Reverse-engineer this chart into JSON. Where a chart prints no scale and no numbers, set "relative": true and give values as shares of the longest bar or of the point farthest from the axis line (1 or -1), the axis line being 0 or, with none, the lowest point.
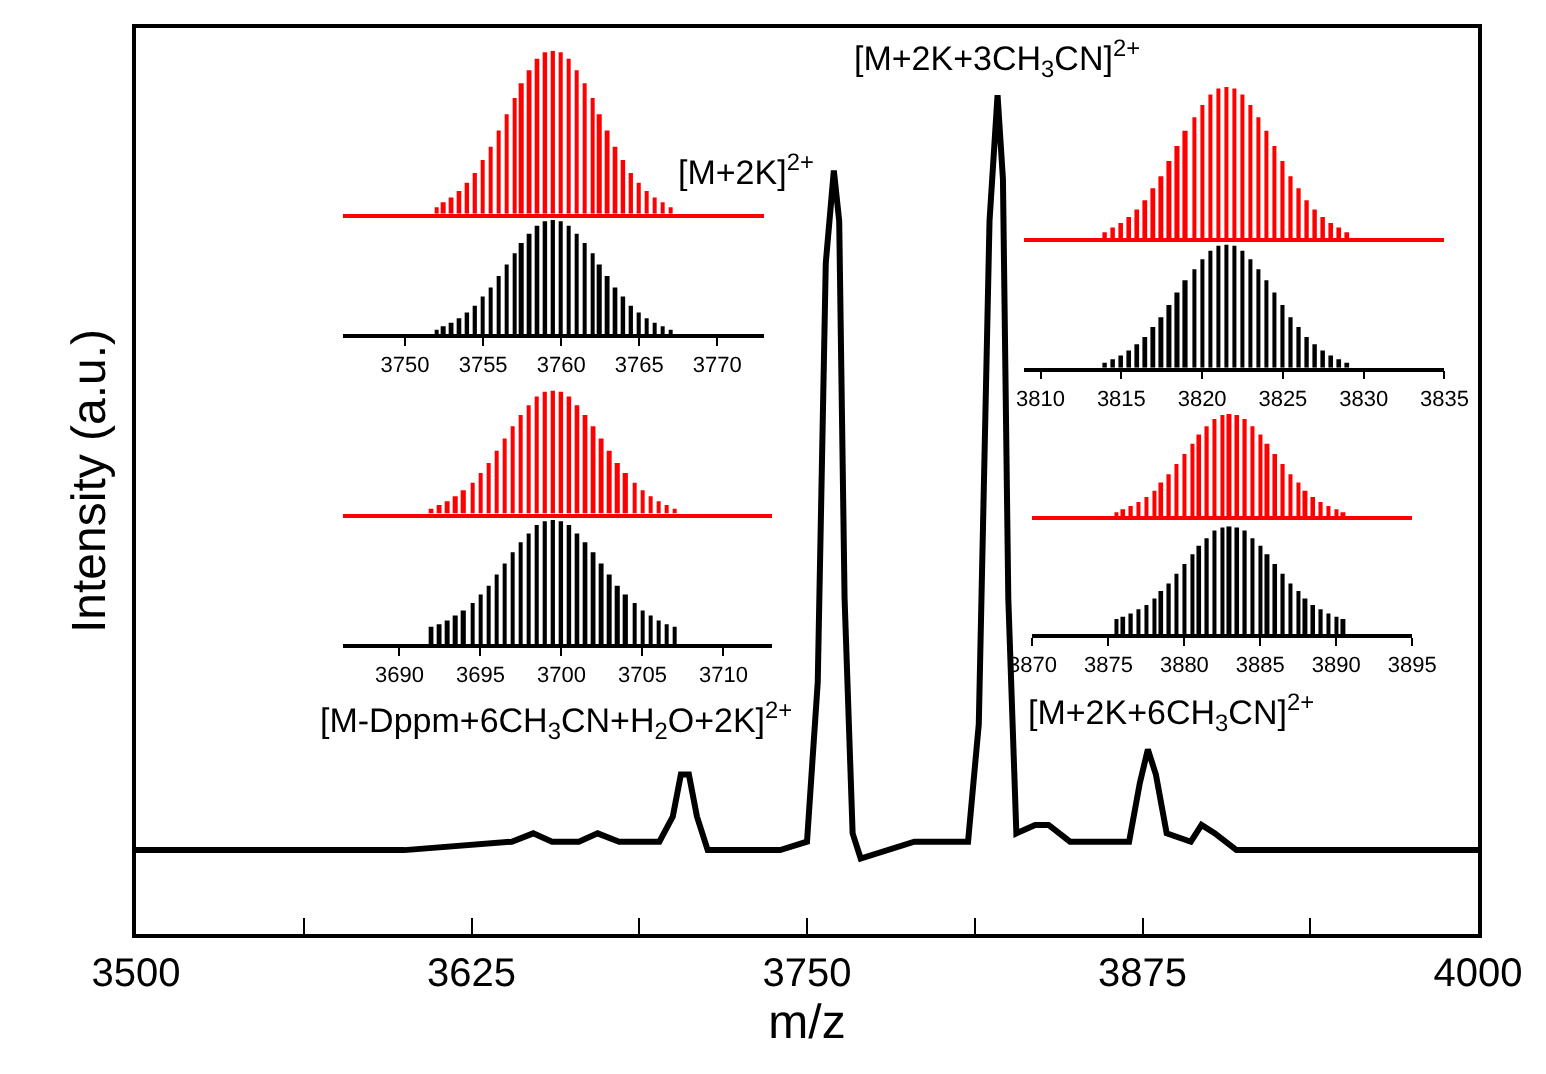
{
  "chart_data": [
    {
      "type": "line",
      "relative": true,
      "xlabel": "m/z",
      "ylabel": "Intensity (a.u.)",
      "xlim": [
        3500,
        4000
      ],
      "xticks": [
        3500,
        {
          "value": 3562.5,
          "label": null
        },
        3625,
        {
          "value": 3687.5,
          "label": null
        },
        3750,
        {
          "value": 3812.5,
          "label": null
        },
        3875,
        {
          "value": 3937.5,
          "label": null
        },
        4000
      ],
      "marker": "none",
      "line_style": "solid",
      "series": [
        {
          "color": "#000000",
          "x": [
            3500,
            3600,
            3640,
            3648,
            3655,
            3665,
            3672,
            3680,
            3695,
            3700,
            3703,
            3706,
            3709,
            3713,
            3740,
            3750,
            3754,
            3757,
            3760,
            3762,
            3764,
            3767,
            3770,
            3790,
            3810,
            3814,
            3818,
            3821,
            3823,
            3825,
            3828,
            3835,
            3840,
            3848,
            3870,
            3874,
            3877,
            3880,
            3884,
            3893,
            3897,
            3902,
            3910,
            4000
          ],
          "values": [
            0.1,
            0.1,
            0.11,
            0.12,
            0.11,
            0.11,
            0.12,
            0.11,
            0.11,
            0.14,
            0.19,
            0.19,
            0.14,
            0.1,
            0.1,
            0.11,
            0.3,
            0.8,
            0.91,
            0.85,
            0.4,
            0.12,
            0.09,
            0.11,
            0.11,
            0.25,
            0.85,
            1.0,
            0.9,
            0.4,
            0.12,
            0.13,
            0.13,
            0.11,
            0.11,
            0.18,
            0.22,
            0.19,
            0.12,
            0.11,
            0.13,
            0.12,
            0.1,
            0.1
          ]
        }
      ],
      "annotations": [
        {
          "text": "[M+2K]$^{2+}$",
          "x": 3760,
          "y": 0.91
        },
        {
          "text": "[M+2K+3CH$_{3}$CN]$^{2+}$",
          "x": 3821,
          "y": 1.0
        },
        {
          "text": "[M-Dppm+6CH$_{3}$CN+H$_{2}$O+2K]$^{2+}$",
          "x": 3705,
          "y": 0.19
        },
        {
          "text": "[M+2K+6CH$_{3}$CN]$^{2+}$",
          "x": 3877,
          "y": 0.22
        }
      ]
    },
    {
      "type": "bar",
      "relative": true,
      "xlim": [
        3746,
        3773
      ],
      "x": [
        3752.0,
        3752.5,
        3753.0,
        3753.5,
        3754.0,
        3754.5,
        3755.0,
        3755.5,
        3756.0,
        3756.5,
        3757.0,
        3757.5,
        3758.0,
        3758.5,
        3759.0,
        3759.5,
        3760.0,
        3760.5,
        3761.0,
        3761.5,
        3762.0,
        3762.5,
        3763.0,
        3763.5,
        3764.0,
        3764.5,
        3765.0,
        3765.5,
        3766.0,
        3766.5,
        3767.0
      ],
      "series": [
        {
          "color": "#ff0000",
          "values": [
            0.04,
            0.07,
            0.1,
            0.14,
            0.19,
            0.25,
            0.33,
            0.41,
            0.51,
            0.61,
            0.71,
            0.8,
            0.88,
            0.95,
            0.99,
            1.0,
            0.99,
            0.95,
            0.88,
            0.8,
            0.71,
            0.61,
            0.51,
            0.41,
            0.33,
            0.25,
            0.19,
            0.14,
            0.1,
            0.07,
            0.04
          ]
        }
      ]
    },
    {
      "type": "bar",
      "relative": true,
      "xlim": [
        3746,
        3773
      ],
      "xticks": [
        3750,
        3755,
        3760,
        3765,
        3770
      ],
      "x": [
        3752.0,
        3752.5,
        3753.0,
        3753.5,
        3754.0,
        3754.5,
        3755.0,
        3755.5,
        3756.0,
        3756.5,
        3757.0,
        3757.5,
        3758.0,
        3758.5,
        3759.0,
        3759.5,
        3760.0,
        3760.5,
        3761.0,
        3761.5,
        3762.0,
        3762.5,
        3763.0,
        3763.5,
        3764.0,
        3764.5,
        3765.0,
        3765.5,
        3766.0,
        3766.5,
        3767.0
      ],
      "series": [
        {
          "color": "#000000",
          "values": [
            0.04,
            0.07,
            0.1,
            0.14,
            0.19,
            0.25,
            0.33,
            0.41,
            0.51,
            0.61,
            0.71,
            0.8,
            0.88,
            0.95,
            0.99,
            1.0,
            0.99,
            0.95,
            0.88,
            0.8,
            0.71,
            0.61,
            0.51,
            0.41,
            0.33,
            0.25,
            0.19,
            0.14,
            0.1,
            0.07,
            0.04
          ]
        }
      ]
    },
    {
      "type": "bar",
      "relative": true,
      "xlim": [
        3686.5,
        3713
      ],
      "x": [
        3692.0,
        3692.5,
        3693.0,
        3693.5,
        3694.0,
        3694.5,
        3695.0,
        3695.5,
        3696.0,
        3696.5,
        3697.0,
        3697.5,
        3698.0,
        3698.5,
        3699.0,
        3699.5,
        3700.0,
        3700.5,
        3701.0,
        3701.5,
        3702.0,
        3702.5,
        3703.0,
        3703.5,
        3704.0,
        3704.5,
        3705.0,
        3705.5,
        3706.0,
        3706.5,
        3707.0
      ],
      "series": [
        {
          "color": "#ff0000",
          "values": [
            0.04,
            0.07,
            0.1,
            0.14,
            0.19,
            0.25,
            0.33,
            0.41,
            0.51,
            0.61,
            0.71,
            0.8,
            0.88,
            0.95,
            0.99,
            1.0,
            0.99,
            0.95,
            0.88,
            0.8,
            0.71,
            0.61,
            0.51,
            0.41,
            0.33,
            0.25,
            0.19,
            0.14,
            0.1,
            0.07,
            0.04
          ]
        }
      ]
    },
    {
      "type": "bar",
      "relative": true,
      "xlim": [
        3686.5,
        3713
      ],
      "xticks": [
        3690,
        3695,
        3700,
        3705,
        3710
      ],
      "x": [
        3692.0,
        3692.5,
        3693.0,
        3693.5,
        3694.0,
        3694.5,
        3695.0,
        3695.5,
        3696.0,
        3696.5,
        3697.0,
        3697.5,
        3698.0,
        3698.5,
        3699.0,
        3699.5,
        3700.0,
        3700.5,
        3701.0,
        3701.5,
        3702.0,
        3702.5,
        3703.0,
        3703.5,
        3704.0,
        3704.5,
        3705.0,
        3705.5,
        3706.0,
        3706.5,
        3707.0
      ],
      "series": [
        {
          "color": "#000000",
          "values": [
            0.14,
            0.16,
            0.19,
            0.23,
            0.27,
            0.33,
            0.4,
            0.47,
            0.56,
            0.65,
            0.74,
            0.82,
            0.89,
            0.96,
            0.99,
            1.0,
            0.99,
            0.96,
            0.89,
            0.82,
            0.74,
            0.65,
            0.56,
            0.47,
            0.4,
            0.33,
            0.27,
            0.23,
            0.19,
            0.16,
            0.14
          ]
        }
      ]
    },
    {
      "type": "bar",
      "relative": true,
      "xlim": [
        3809,
        3835
      ],
      "x": [
        3814.0,
        3814.5,
        3815.0,
        3815.5,
        3816.0,
        3816.5,
        3817.0,
        3817.5,
        3818.0,
        3818.5,
        3819.0,
        3819.5,
        3820.0,
        3820.5,
        3821.0,
        3821.5,
        3822.0,
        3822.5,
        3823.0,
        3823.5,
        3824.0,
        3824.5,
        3825.0,
        3825.5,
        3826.0,
        3826.5,
        3827.0,
        3827.5,
        3828.0,
        3828.5,
        3829.0
      ],
      "series": [
        {
          "color": "#ff0000",
          "values": [
            0.04,
            0.07,
            0.1,
            0.14,
            0.19,
            0.25,
            0.33,
            0.41,
            0.51,
            0.61,
            0.71,
            0.8,
            0.88,
            0.95,
            0.99,
            1.0,
            0.99,
            0.95,
            0.88,
            0.8,
            0.71,
            0.61,
            0.51,
            0.41,
            0.33,
            0.25,
            0.19,
            0.14,
            0.1,
            0.07,
            0.04
          ]
        }
      ]
    },
    {
      "type": "bar",
      "relative": true,
      "xlim": [
        3809,
        3835
      ],
      "xticks": [
        3810,
        3815,
        3820,
        3825,
        3830,
        3835
      ],
      "x": [
        3814.0,
        3814.5,
        3815.0,
        3815.5,
        3816.0,
        3816.5,
        3817.0,
        3817.5,
        3818.0,
        3818.5,
        3819.0,
        3819.5,
        3820.0,
        3820.5,
        3821.0,
        3821.5,
        3822.0,
        3822.5,
        3823.0,
        3823.5,
        3824.0,
        3824.5,
        3825.0,
        3825.5,
        3826.0,
        3826.5,
        3827.0,
        3827.5,
        3828.0,
        3828.5,
        3829.0
      ],
      "series": [
        {
          "color": "#000000",
          "values": [
            0.04,
            0.07,
            0.1,
            0.14,
            0.19,
            0.25,
            0.33,
            0.41,
            0.51,
            0.61,
            0.71,
            0.8,
            0.88,
            0.95,
            0.99,
            1.0,
            0.99,
            0.95,
            0.88,
            0.8,
            0.71,
            0.61,
            0.51,
            0.41,
            0.33,
            0.25,
            0.19,
            0.14,
            0.1,
            0.07,
            0.04
          ]
        }
      ]
    },
    {
      "type": "bar",
      "relative": true,
      "xlim": [
        3870,
        3895
      ],
      "x": [
        3875.5,
        3876.0,
        3876.5,
        3877.0,
        3877.5,
        3878.0,
        3878.5,
        3879.0,
        3879.5,
        3880.0,
        3880.5,
        3881.0,
        3881.5,
        3882.0,
        3882.5,
        3883.0,
        3883.5,
        3884.0,
        3884.5,
        3885.0,
        3885.5,
        3886.0,
        3886.5,
        3887.0,
        3887.5,
        3888.0,
        3888.5,
        3889.0,
        3889.5,
        3890.0,
        3890.5
      ],
      "series": [
        {
          "color": "#ff0000",
          "values": [
            0.04,
            0.07,
            0.1,
            0.14,
            0.19,
            0.25,
            0.33,
            0.41,
            0.51,
            0.61,
            0.71,
            0.8,
            0.88,
            0.95,
            0.99,
            1.0,
            0.99,
            0.95,
            0.88,
            0.8,
            0.71,
            0.61,
            0.51,
            0.41,
            0.33,
            0.25,
            0.19,
            0.14,
            0.1,
            0.07,
            0.04
          ]
        }
      ]
    },
    {
      "type": "bar",
      "relative": true,
      "xlim": [
        3870,
        3895
      ],
      "xticks": [
        3870,
        3875,
        3880,
        3885,
        3890,
        3895
      ],
      "x": [
        3875.5,
        3876.0,
        3876.5,
        3877.0,
        3877.5,
        3878.0,
        3878.5,
        3879.0,
        3879.5,
        3880.0,
        3880.5,
        3881.0,
        3881.5,
        3882.0,
        3882.5,
        3883.0,
        3883.5,
        3884.0,
        3884.5,
        3885.0,
        3885.5,
        3886.0,
        3886.5,
        3887.0,
        3887.5,
        3888.0,
        3888.5,
        3889.0,
        3889.5,
        3890.0,
        3890.5
      ],
      "series": [
        {
          "color": "#000000",
          "values": [
            0.14,
            0.16,
            0.19,
            0.23,
            0.27,
            0.33,
            0.4,
            0.47,
            0.56,
            0.65,
            0.74,
            0.82,
            0.89,
            0.96,
            0.99,
            1.0,
            0.99,
            0.96,
            0.89,
            0.82,
            0.74,
            0.65,
            0.56,
            0.47,
            0.4,
            0.33,
            0.27,
            0.23,
            0.19,
            0.16,
            0.14
          ]
        }
      ]
    }
  ]
}
